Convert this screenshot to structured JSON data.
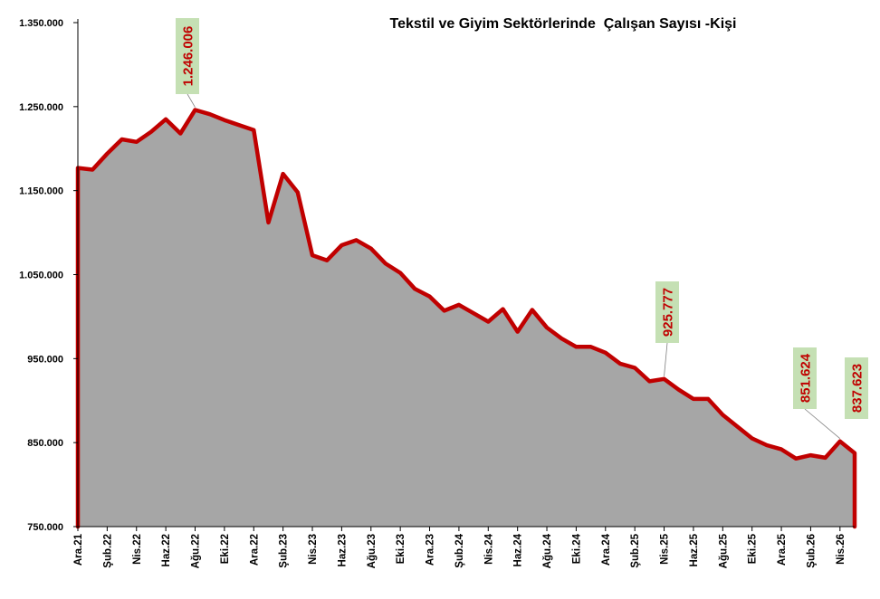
{
  "chart_data": {
    "type": "area",
    "title": "Tekstil ve Giyim Sektörlerinde  Çalışan Sayısı -Kişi",
    "xlabel": "",
    "ylabel": "",
    "ylim": [
      750000,
      1350000
    ],
    "yticks": [
      750000,
      850000,
      950000,
      1050000,
      1150000,
      1250000,
      1350000
    ],
    "ytick_labels": [
      "750.000",
      "850.000",
      "950.000",
      "1.050.000",
      "1.150.000",
      "1.250.000",
      "1.350.000"
    ],
    "x": [
      "Ara.21",
      "Oca.22",
      "Şub.22",
      "Mar.22",
      "Nis.22",
      "May.22",
      "Haz.22",
      "Tem.22",
      "Ağu.22",
      "Eyl.22",
      "Eki.22",
      "Kas.22",
      "Ara.22",
      "Oca.23",
      "Şub.23",
      "Mar.23",
      "Nis.23",
      "May.23",
      "Haz.23",
      "Tem.23",
      "Ağu.23",
      "Eyl.23",
      "Eki.23",
      "Kas.23",
      "Ara.23",
      "Oca.24",
      "Şub.24",
      "Mar.24",
      "Nis.24",
      "May.24",
      "Haz.24",
      "Tem.24",
      "Ağu.24",
      "Eyl.24",
      "Eki.24",
      "Kas.24",
      "Ara.24",
      "Oca.25",
      "Şub.25",
      "Mar.25",
      "Nis.25",
      "May.25",
      "Haz.25",
      "Tem.25",
      "Ağu.25",
      "Eyl.25",
      "Eki.25",
      "Kas.25",
      "Ara.25",
      "Oca.26",
      "Şub.26",
      "Mar.26",
      "Nis.26",
      "May.26"
    ],
    "xtick_labels": [
      {
        "i": 0,
        "label": "Ara.21"
      },
      {
        "i": 2,
        "label": "Şub.22"
      },
      {
        "i": 4,
        "label": "Nis.22"
      },
      {
        "i": 6,
        "label": "Haz.22"
      },
      {
        "i": 8,
        "label": "Ağu.22"
      },
      {
        "i": 10,
        "label": "Eki.22"
      },
      {
        "i": 12,
        "label": "Ara.22"
      },
      {
        "i": 14,
        "label": "Şub.23"
      },
      {
        "i": 16,
        "label": "Nis.23"
      },
      {
        "i": 18,
        "label": "Haz.23"
      },
      {
        "i": 20,
        "label": "Ağu.23"
      },
      {
        "i": 22,
        "label": "Eki.23"
      },
      {
        "i": 24,
        "label": "Ara.23"
      },
      {
        "i": 26,
        "label": "Şub.24"
      },
      {
        "i": 28,
        "label": "Nis.24"
      },
      {
        "i": 30,
        "label": "Haz.24"
      },
      {
        "i": 32,
        "label": "Ağu.24"
      },
      {
        "i": 34,
        "label": "Eki.24"
      },
      {
        "i": 36,
        "label": "Ara.24"
      },
      {
        "i": 38,
        "label": "Şub.25"
      },
      {
        "i": 40,
        "label": "Nis.25"
      },
      {
        "i": 42,
        "label": "Haz.25"
      },
      {
        "i": 44,
        "label": "Ağu.25"
      },
      {
        "i": 46,
        "label": "Eki.25"
      },
      {
        "i": 48,
        "label": "Ara.25"
      },
      {
        "i": 50,
        "label": "Şub.26"
      },
      {
        "i": 52,
        "label": "Nis.26"
      }
    ],
    "series": [
      {
        "values": [
          1177000,
          1175000,
          1194000,
          1211000,
          1208000,
          1220000,
          1235000,
          1218000,
          1246006,
          1241000,
          1234000,
          1228000,
          1222000,
          1112000,
          1170000,
          1148000,
          1073000,
          1067000,
          1085000,
          1091000,
          1081000,
          1063000,
          1052000,
          1033000,
          1024000,
          1007000,
          1014000,
          1004000,
          994000,
          1009000,
          982000,
          1008000,
          987000,
          974000,
          964000,
          964000,
          957000,
          944000,
          939000,
          923000,
          925777,
          913000,
          902000,
          902000,
          883000,
          869000,
          855000,
          847000,
          842000,
          831000,
          835000,
          832000,
          851624,
          837623
        ]
      }
    ],
    "annotations": [
      {
        "i": 8,
        "text": "1.246.006"
      },
      {
        "i": 40,
        "text": "925.777"
      },
      {
        "i": 52,
        "text": "851.624"
      },
      {
        "i": 53,
        "text": "837.623"
      }
    ],
    "colors": {
      "fill": "#a6a6a6",
      "line": "#c00000",
      "label_bg": "#c5e0b4",
      "axis": "#000000"
    },
    "grid": false,
    "legend": "none"
  }
}
